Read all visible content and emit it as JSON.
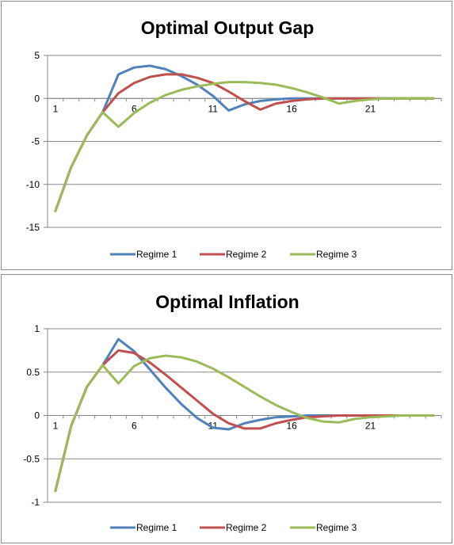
{
  "colors": {
    "regime1": "#4f81bd",
    "regime2": "#c0504d",
    "regime3": "#9bbb59",
    "grid": "#878787",
    "axis": "#878787"
  },
  "chart_data": [
    {
      "type": "line",
      "title": "Optimal Output Gap",
      "xlabel": "",
      "ylabel": "",
      "x": [
        1,
        2,
        3,
        4,
        5,
        6,
        7,
        8,
        9,
        10,
        11,
        12,
        13,
        14,
        15,
        16,
        17,
        18,
        19,
        20,
        21,
        22,
        23,
        24,
        25
      ],
      "x_tick_labels": [
        "1",
        "6",
        "11",
        "16",
        "21"
      ],
      "y_ticks": [
        5,
        0,
        -5,
        -10,
        -15
      ],
      "ylim": [
        -15,
        5
      ],
      "grid": true,
      "legend": "bottom",
      "series": [
        {
          "name": "Regime 1",
          "color": "#4f81bd",
          "values": [
            -13.1,
            -8.0,
            -4.3,
            -1.6,
            2.8,
            3.6,
            3.8,
            3.4,
            2.6,
            1.6,
            0.3,
            -1.4,
            -0.7,
            -0.3,
            -0.1,
            0,
            0,
            0,
            0,
            0,
            0,
            0,
            0,
            0,
            0
          ]
        },
        {
          "name": "Regime 2",
          "color": "#c0504d",
          "values": [
            -13.1,
            -8.0,
            -4.3,
            -1.6,
            0.6,
            1.8,
            2.5,
            2.8,
            2.8,
            2.4,
            1.8,
            0.8,
            -0.3,
            -1.3,
            -0.6,
            -0.3,
            -0.1,
            0,
            0,
            0,
            0,
            0,
            0,
            0,
            0
          ]
        },
        {
          "name": "Regime 3",
          "color": "#9bbb59",
          "values": [
            -13.1,
            -8.0,
            -4.3,
            -1.6,
            -3.3,
            -1.7,
            -0.5,
            0.4,
            1.0,
            1.4,
            1.7,
            1.9,
            1.9,
            1.8,
            1.6,
            1.2,
            0.7,
            0.1,
            -0.6,
            -0.3,
            -0.1,
            0,
            0,
            0,
            0
          ]
        }
      ]
    },
    {
      "type": "line",
      "title": "Optimal Inflation",
      "xlabel": "",
      "ylabel": "",
      "x": [
        1,
        2,
        3,
        4,
        5,
        6,
        7,
        8,
        9,
        10,
        11,
        12,
        13,
        14,
        15,
        16,
        17,
        18,
        19,
        20,
        21,
        22,
        23,
        24,
        25
      ],
      "x_tick_labels": [
        "1",
        "6",
        "11",
        "16",
        "21"
      ],
      "y_ticks": [
        1,
        0.5,
        0,
        -0.5,
        -1
      ],
      "ylim": [
        -1,
        1
      ],
      "grid": true,
      "legend": "bottom",
      "series": [
        {
          "name": "Regime 1",
          "color": "#4f81bd",
          "values": [
            -0.87,
            -0.12,
            0.33,
            0.58,
            0.88,
            0.74,
            0.53,
            0.32,
            0.13,
            -0.03,
            -0.14,
            -0.16,
            -0.09,
            -0.05,
            -0.02,
            -0.01,
            0,
            0,
            0,
            0,
            0,
            0,
            0,
            0,
            0
          ]
        },
        {
          "name": "Regime 2",
          "color": "#c0504d",
          "values": [
            -0.87,
            -0.12,
            0.33,
            0.58,
            0.75,
            0.72,
            0.61,
            0.47,
            0.32,
            0.17,
            0.02,
            -0.09,
            -0.15,
            -0.15,
            -0.09,
            -0.05,
            -0.02,
            -0.01,
            0,
            0,
            0,
            0,
            0,
            0,
            0
          ]
        },
        {
          "name": "Regime 3",
          "color": "#9bbb59",
          "values": [
            -0.87,
            -0.12,
            0.33,
            0.58,
            0.37,
            0.57,
            0.66,
            0.69,
            0.67,
            0.62,
            0.54,
            0.44,
            0.33,
            0.22,
            0.12,
            0.04,
            -0.03,
            -0.07,
            -0.08,
            -0.04,
            -0.02,
            -0.01,
            0,
            0,
            0
          ]
        }
      ]
    }
  ]
}
